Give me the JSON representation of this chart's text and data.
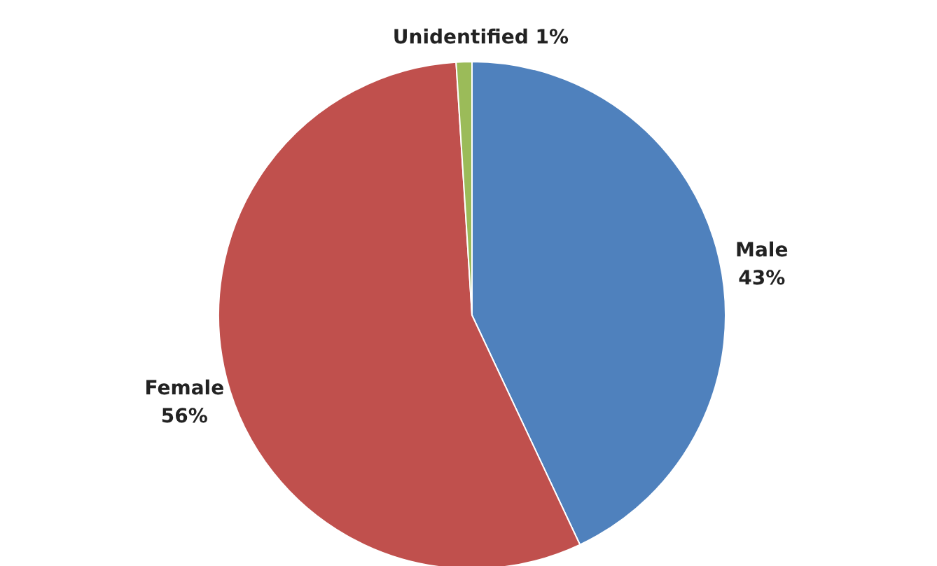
{
  "chart_data": {
    "type": "pie",
    "categories": [
      "Male",
      "Female",
      "Unidentified"
    ],
    "values": [
      43,
      56,
      1
    ],
    "colors": [
      "#4f81bd",
      "#c0504d",
      "#9bbb59"
    ],
    "value_labels": [
      "43%",
      "56%",
      "1%"
    ]
  }
}
